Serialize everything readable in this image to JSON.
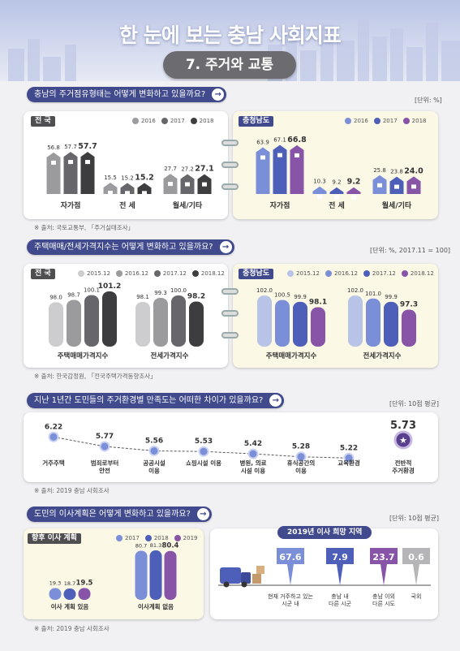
{
  "header": {
    "title": "한 눈에 보는 충남 사회지표",
    "subtitle": "7. 주거와 교통"
  },
  "colors": {
    "nation": [
      "#cdcdcf",
      "#9b9b9e",
      "#67676b",
      "#3d3d40"
    ],
    "chungnam": [
      "#b8c3e8",
      "#7a8fd8",
      "#4d5fb8",
      "#8754a8"
    ],
    "badge": "#404a8c"
  },
  "section1": {
    "question": "충남의 주거점유형태는 어떻게 변화하고 있을까요?",
    "unit": "[단위: %]",
    "source": "※ 출처: 국토교통부, 「주거실태조사」"
  },
  "section2": {
    "question": "주택매매/전세가격지수는 어떻게 변화하고 있을까요?",
    "unit": "[단위: %, 2017.11 = 100]",
    "source": "※ 출처: 한국감정원, 「전국주택가격동향조사」"
  },
  "section3": {
    "question": "지난 1년간 도민들의 주거환경별 만족도는 어떠한 차이가 있을까요?",
    "unit": "[단위: 10점 평균]",
    "source": "※ 출처: 2019 충남 사회조사"
  },
  "section4": {
    "question": "도민의 이사계획은 어떻게 변화하고 있을까요?",
    "unit": "[단위: 10점 평균]",
    "source": "※ 출처: 2019 충남 사회조사",
    "region_title": "2019년 이사 희망 지역"
  },
  "chart_data": [
    {
      "type": "bar",
      "title": "전 국",
      "categories": [
        "자가점",
        "전 세",
        "월세/기타"
      ],
      "series": [
        {
          "name": "2016",
          "values": [
            56.8,
            15.5,
            27.7
          ]
        },
        {
          "name": "2017",
          "values": [
            57.7,
            15.2,
            27.2
          ]
        },
        {
          "name": "2018",
          "values": [
            57.7,
            15.2,
            27.1
          ]
        }
      ]
    },
    {
      "type": "bar",
      "title": "충청남도",
      "categories": [
        "자가점",
        "전 세",
        "월세/기타"
      ],
      "series": [
        {
          "name": "2016",
          "values": [
            63.9,
            10.3,
            25.8
          ]
        },
        {
          "name": "2017",
          "values": [
            67.1,
            9.2,
            23.8
          ]
        },
        {
          "name": "2018",
          "values": [
            66.8,
            9.2,
            24.0
          ]
        }
      ]
    },
    {
      "type": "bar",
      "title": "전 국",
      "categories": [
        "주택매매가격지수",
        "전세가격지수"
      ],
      "series": [
        {
          "name": "2015.12",
          "values": [
            98.0,
            98.1
          ]
        },
        {
          "name": "2016.12",
          "values": [
            98.7,
            99.3
          ]
        },
        {
          "name": "2017.12",
          "values": [
            100.1,
            100.0
          ]
        },
        {
          "name": "2018.12",
          "values": [
            101.2,
            98.2
          ]
        }
      ]
    },
    {
      "type": "bar",
      "title": "충청남도",
      "categories": [
        "주택매매가격지수",
        "전세가격지수"
      ],
      "series": [
        {
          "name": "2015.12",
          "values": [
            102.0,
            102.0
          ]
        },
        {
          "name": "2016.12",
          "values": [
            100.5,
            101.0
          ]
        },
        {
          "name": "2017.12",
          "values": [
            99.9,
            99.9
          ]
        },
        {
          "name": "2018.12",
          "values": [
            98.1,
            97.3
          ]
        }
      ]
    },
    {
      "type": "line",
      "categories": [
        "거주주택",
        "범죄로부터\n안전",
        "공공시설\n이용",
        "쇼핑시설 이용",
        "병원, 의료\n시설 이용",
        "휴식공간의\n이용",
        "교육환경"
      ],
      "values": [
        6.22,
        5.77,
        5.56,
        5.53,
        5.42,
        5.28,
        5.22
      ],
      "overall": {
        "label": "전반적\n주거환경",
        "value": 5.73
      }
    },
    {
      "type": "bar",
      "title": "향후 이사 계획",
      "categories": [
        "이사 계획 있음",
        "이사계획 없음"
      ],
      "series": [
        {
          "name": "2017",
          "values": [
            19.3,
            80.7
          ]
        },
        {
          "name": "2018",
          "values": [
            18.7,
            81.3
          ]
        },
        {
          "name": "2019",
          "values": [
            19.5,
            80.4
          ]
        }
      ]
    },
    {
      "type": "bar",
      "title": "2019년 이사 희망 지역",
      "categories": [
        "현재 거주하고 있는\n시군 내",
        "충남 내\n다른 시군",
        "충남 이외\n다른 시도",
        "국외"
      ],
      "values": [
        67.6,
        7.9,
        23.7,
        0.6
      ]
    }
  ]
}
